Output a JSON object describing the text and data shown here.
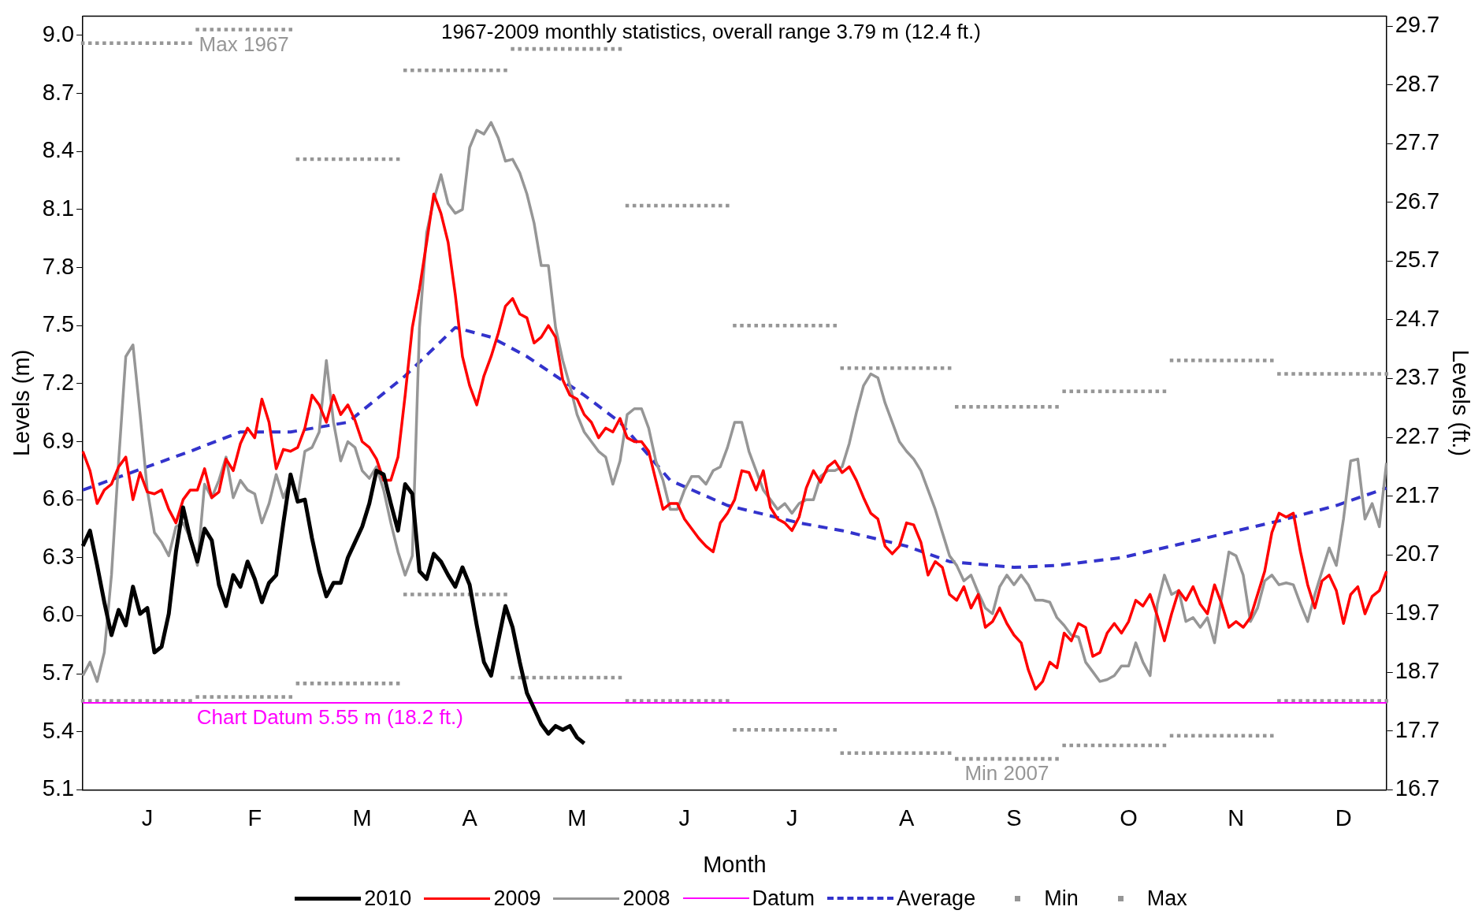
{
  "chart_data": {
    "type": "line",
    "xlabel": "Month",
    "ylabel": "Levels (m)",
    "y2label": "Levels (ft.)",
    "categories": [
      null,
      null,
      null,
      null,
      null,
      null,
      null,
      null,
      null,
      "J",
      null,
      null,
      null,
      null,
      null,
      null,
      null,
      null,
      null,
      null,
      null,
      null,
      null,
      null,
      "F",
      null,
      null,
      null,
      null,
      null,
      null,
      null,
      null,
      null,
      null,
      null,
      null,
      null,
      null,
      "M",
      null,
      null,
      null,
      null,
      null,
      null,
      null,
      null,
      null,
      null,
      null,
      null,
      null,
      null,
      "A",
      null,
      null,
      null,
      null,
      null,
      null,
      null,
      null,
      null,
      null,
      null,
      null,
      null,
      null,
      "M",
      null,
      null,
      null,
      null,
      null,
      null,
      null,
      null,
      null,
      null,
      null,
      null,
      null,
      null,
      "J",
      null,
      null,
      null,
      null,
      null,
      null,
      null,
      null,
      null,
      null,
      null,
      null,
      null,
      null,
      "J",
      null,
      null,
      null,
      null,
      null,
      null,
      null,
      null,
      null,
      null,
      null,
      null,
      null,
      null,
      null,
      "A",
      null,
      null,
      null,
      null,
      null,
      null,
      null,
      null,
      null,
      null,
      null,
      null,
      null,
      null,
      "S",
      null,
      null,
      null,
      null,
      null,
      null,
      null,
      null,
      null,
      null,
      null,
      null,
      null,
      null,
      null,
      "O",
      null,
      null,
      null,
      null,
      null,
      null,
      null,
      null,
      null,
      null,
      null,
      null,
      null,
      null,
      "N",
      null,
      null,
      null,
      null,
      null,
      null,
      null,
      null,
      null,
      null,
      null,
      null,
      null,
      null,
      "D",
      null,
      null,
      null,
      null,
      null,
      null
    ],
    "ylim": [
      5.1,
      9.1
    ],
    "yticks": [
      5.1,
      5.4,
      5.7,
      {
        "value": 6,
        "label": "6.0"
      },
      6.3,
      6.6,
      6.9,
      7.2,
      7.5,
      7.8,
      8.1,
      8.4,
      8.7,
      {
        "value": 9,
        "label": "9.0"
      }
    ],
    "y2lim": [
      16.7,
      29.87
    ],
    "y2ticks": [
      16.7,
      17.7,
      18.7,
      19.7,
      20.7,
      21.7,
      22.7,
      23.7,
      24.7,
      25.7,
      26.7,
      27.7,
      28.7,
      29.7
    ],
    "grid": false,
    "legend": "bottom",
    "annotations": [
      "1967-2009 monthly statistics, overall range 3.79 m (12.4 ft.)",
      {
        "text": "Max 1967",
        "y": 9.03
      },
      {
        "text": "Min 2007",
        "y": 5.26
      },
      {
        "text": "Chart Datum 5.55 m (18.2 ft.)",
        "y": 5.55
      }
    ],
    "series": [
      {
        "name": "2010",
        "color": "#000000",
        "line_style": "solid",
        "values": [
          6.36,
          6.44,
          6.26,
          6.07,
          5.9,
          6.03,
          5.95,
          6.15,
          6.01,
          6.04,
          5.81,
          5.84,
          6.01,
          6.33,
          6.56,
          6.4,
          6.28,
          6.45,
          6.39,
          6.16,
          6.05,
          6.21,
          6.15,
          6.28,
          6.19,
          6.07,
          6.17,
          6.21,
          6.48,
          6.73,
          6.59,
          6.6,
          6.4,
          6.23,
          6.1,
          6.17,
          6.17,
          6.3,
          6.38,
          6.46,
          6.58,
          6.75,
          6.73,
          6.58,
          6.44,
          6.68,
          6.63,
          6.23,
          6.19,
          6.32,
          6.28,
          6.21,
          6.15,
          6.25,
          6.16,
          5.95,
          5.76,
          5.69,
          5.87,
          6.05,
          5.94,
          5.76,
          5.6,
          5.52,
          5.44,
          5.39,
          5.43,
          5.41,
          5.43,
          5.37,
          5.34,
          null,
          null,
          null,
          null,
          null,
          null,
          null,
          null,
          null,
          null,
          null,
          null,
          null,
          null,
          null,
          null,
          null,
          null,
          null,
          null,
          null,
          null,
          null,
          null,
          null,
          null,
          null,
          null,
          null,
          null,
          null,
          null,
          null,
          null,
          null,
          null,
          null,
          null,
          null,
          null,
          null,
          null,
          null,
          null,
          null,
          null,
          null,
          null,
          null,
          null,
          null,
          null,
          null,
          null,
          null,
          null,
          null,
          null,
          null,
          null,
          null,
          null,
          null,
          null,
          null,
          null,
          null,
          null,
          null,
          null,
          null,
          null,
          null,
          null,
          null,
          null,
          null,
          null,
          null,
          null,
          null,
          null,
          null,
          null,
          null,
          null,
          null,
          null,
          null,
          null,
          null,
          null,
          null,
          null,
          null,
          null,
          null,
          null,
          null,
          null,
          null,
          null,
          null,
          null,
          null,
          null,
          null,
          null,
          null,
          null,
          null,
          null
        ]
      },
      {
        "name": "2009",
        "color": "#ff0000",
        "line_style": "solid",
        "values": [
          6.85,
          6.75,
          6.58,
          6.65,
          6.68,
          6.77,
          6.82,
          6.6,
          6.74,
          6.64,
          6.63,
          6.65,
          6.55,
          6.48,
          6.6,
          6.65,
          6.65,
          6.76,
          6.61,
          6.64,
          6.81,
          6.75,
          6.89,
          6.97,
          6.92,
          7.12,
          7.0,
          6.76,
          6.86,
          6.85,
          6.87,
          6.97,
          7.14,
          7.09,
          7.0,
          7.14,
          7.04,
          7.09,
          7.01,
          6.9,
          6.87,
          6.81,
          6.7,
          6.7,
          6.82,
          7.14,
          7.49,
          7.69,
          7.93,
          8.18,
          8.08,
          7.93,
          7.66,
          7.34,
          7.19,
          7.09,
          7.24,
          7.34,
          7.46,
          7.6,
          7.64,
          7.56,
          7.54,
          7.41,
          7.44,
          7.5,
          7.44,
          7.22,
          7.14,
          7.12,
          7.04,
          7.0,
          6.92,
          6.97,
          6.95,
          7.02,
          6.92,
          6.9,
          6.9,
          6.85,
          6.7,
          6.55,
          6.58,
          6.58,
          6.5,
          6.45,
          6.4,
          6.36,
          6.33,
          6.48,
          6.53,
          6.6,
          6.75,
          6.74,
          6.65,
          6.75,
          6.56,
          6.5,
          6.48,
          6.44,
          6.51,
          6.66,
          6.75,
          6.69,
          6.77,
          6.8,
          6.74,
          6.77,
          6.7,
          6.61,
          6.53,
          6.5,
          6.36,
          6.32,
          6.36,
          6.48,
          6.47,
          6.38,
          6.21,
          6.28,
          6.25,
          6.11,
          6.08,
          6.15,
          6.04,
          6.11,
          5.94,
          5.97,
          6.04,
          5.96,
          5.9,
          5.86,
          5.72,
          5.62,
          5.66,
          5.76,
          5.73,
          5.91,
          5.87,
          5.96,
          5.94,
          5.79,
          5.81,
          5.91,
          5.96,
          5.91,
          5.97,
          6.08,
          6.05,
          6.11,
          6.0,
          5.87,
          6.01,
          6.13,
          6.08,
          6.15,
          6.06,
          6.01,
          6.16,
          6.06,
          5.94,
          5.97,
          5.94,
          5.99,
          6.11,
          6.23,
          6.43,
          6.53,
          6.51,
          6.53,
          6.33,
          6.16,
          6.04,
          6.18,
          6.21,
          6.13,
          5.96,
          6.11,
          6.15,
          6.01,
          6.1,
          6.13,
          6.23
        ]
      },
      {
        "name": "2008",
        "color": "#969696",
        "line_style": "solid",
        "values": [
          5.69,
          5.76,
          5.66,
          5.81,
          6.21,
          6.8,
          7.34,
          7.4,
          7.04,
          6.65,
          6.43,
          6.38,
          6.31,
          6.46,
          6.48,
          6.4,
          6.26,
          6.68,
          6.61,
          6.7,
          6.82,
          6.61,
          6.7,
          6.65,
          6.63,
          6.48,
          6.58,
          6.73,
          6.61,
          6.7,
          6.61,
          6.85,
          6.87,
          6.95,
          7.32,
          7.0,
          6.8,
          6.9,
          6.87,
          6.75,
          6.71,
          6.77,
          6.65,
          6.48,
          6.33,
          6.21,
          6.31,
          7.49,
          7.98,
          8.15,
          8.28,
          8.13,
          8.08,
          8.1,
          8.42,
          8.51,
          8.49,
          8.55,
          8.47,
          8.35,
          8.36,
          8.29,
          8.18,
          8.03,
          7.81,
          7.81,
          7.49,
          7.32,
          7.19,
          7.04,
          6.95,
          6.9,
          6.85,
          6.82,
          6.68,
          6.8,
          7.04,
          7.07,
          7.07,
          6.97,
          6.8,
          6.7,
          6.55,
          6.55,
          6.65,
          6.72,
          6.72,
          6.68,
          6.75,
          6.77,
          6.87,
          7.0,
          7.0,
          6.85,
          6.75,
          6.65,
          6.6,
          6.55,
          6.58,
          6.53,
          6.58,
          6.6,
          6.6,
          6.72,
          6.75,
          6.75,
          6.77,
          6.89,
          7.05,
          7.19,
          7.25,
          7.23,
          7.1,
          7.0,
          6.9,
          6.85,
          6.81,
          6.75,
          6.65,
          6.55,
          6.43,
          6.31,
          6.26,
          6.18,
          6.21,
          6.12,
          6.04,
          6.01,
          6.15,
          6.21,
          6.16,
          6.21,
          6.16,
          6.08,
          6.08,
          6.07,
          5.99,
          5.95,
          5.9,
          5.89,
          5.76,
          5.71,
          5.66,
          5.67,
          5.69,
          5.74,
          5.74,
          5.86,
          5.76,
          5.69,
          6.06,
          6.21,
          6.11,
          6.13,
          5.97,
          5.99,
          5.94,
          5.99,
          5.86,
          6.1,
          6.33,
          6.31,
          6.21,
          5.97,
          6.04,
          6.18,
          6.21,
          6.16,
          6.17,
          6.16,
          6.06,
          5.97,
          6.11,
          6.23,
          6.35,
          6.26,
          6.5,
          6.8,
          6.81,
          6.5,
          6.58,
          6.46,
          6.79
        ]
      },
      {
        "name": "Datum",
        "color": "#ff00ff",
        "line_style": "solid",
        "values": [
          5.55,
          5.55,
          5.55,
          5.55,
          5.55,
          5.55,
          5.55,
          5.55,
          5.55,
          5.55,
          5.55,
          5.55,
          5.55,
          5.55,
          5.55,
          5.55,
          5.55,
          5.55,
          5.55,
          5.55,
          5.55,
          5.55,
          5.55,
          5.55,
          5.55,
          5.55,
          5.55,
          5.55,
          5.55,
          5.55,
          5.55,
          5.55,
          5.55,
          5.55,
          5.55,
          5.55,
          5.55,
          5.55,
          5.55,
          5.55,
          5.55,
          5.55,
          5.55,
          5.55,
          5.55,
          5.55,
          5.55,
          5.55,
          5.55,
          5.55,
          5.55,
          5.55,
          5.55,
          5.55,
          5.55,
          5.55,
          5.55,
          5.55,
          5.55,
          5.55,
          5.55,
          5.55,
          5.55,
          5.55,
          5.55,
          5.55,
          5.55,
          5.55,
          5.55,
          5.55,
          5.55,
          5.55,
          5.55,
          5.55,
          5.55,
          5.55,
          5.55,
          5.55,
          5.55,
          5.55,
          5.55,
          5.55,
          5.55,
          5.55,
          5.55,
          5.55,
          5.55,
          5.55,
          5.55,
          5.55,
          5.55,
          5.55,
          5.55,
          5.55,
          5.55,
          5.55,
          5.55,
          5.55,
          5.55,
          5.55,
          5.55,
          5.55,
          5.55,
          5.55,
          5.55,
          5.55,
          5.55,
          5.55,
          5.55,
          5.55,
          5.55,
          5.55,
          5.55,
          5.55,
          5.55,
          5.55,
          5.55,
          5.55,
          5.55,
          5.55,
          5.55,
          5.55,
          5.55,
          5.55,
          5.55,
          5.55,
          5.55,
          5.55,
          5.55,
          5.55,
          5.55,
          5.55,
          5.55,
          5.55,
          5.55,
          5.55,
          5.55,
          5.55,
          5.55,
          5.55,
          5.55,
          5.55,
          5.55,
          5.55,
          5.55,
          5.55,
          5.55,
          5.55,
          5.55,
          5.55,
          5.55,
          5.55,
          5.55,
          5.55,
          5.55,
          5.55,
          5.55,
          5.55,
          5.55,
          5.55,
          5.55,
          5.55,
          5.55,
          5.55,
          5.55,
          5.55,
          5.55,
          5.55,
          5.55,
          5.55,
          5.55,
          5.55,
          5.55,
          5.55,
          5.55,
          5.55,
          5.55,
          5.55,
          5.55,
          5.55,
          5.55,
          5.55,
          5.55
        ]
      },
      {
        "name": "Average",
        "color": "#3333cc",
        "line_style": "dashed",
        "values": [
          6.65,
          null,
          null,
          null,
          null,
          null,
          null,
          null,
          null,
          null,
          null,
          null,
          null,
          null,
          null,
          6.85,
          null,
          null,
          null,
          null,
          null,
          null,
          6.95,
          null,
          null,
          null,
          null,
          null,
          null,
          6.95,
          null,
          null,
          null,
          null,
          null,
          null,
          null,
          7.0,
          null,
          null,
          null,
          null,
          null,
          null,
          null,
          7.24,
          null,
          null,
          null,
          null,
          null,
          null,
          7.49,
          null,
          null,
          null,
          null,
          7.44,
          null,
          null,
          null,
          null,
          7.34,
          null,
          null,
          null,
          null,
          null,
          null,
          null,
          7.14,
          null,
          null,
          null,
          null,
          7.0,
          null,
          null,
          null,
          null,
          null,
          null,
          6.7,
          null,
          null,
          null,
          null,
          null,
          null,
          null,
          6.57,
          null,
          null,
          null,
          null,
          null,
          null,
          null,
          null,
          null,
          6.48,
          null,
          null,
          null,
          null,
          null,
          6.44,
          null,
          null,
          null,
          null,
          null,
          null,
          null,
          null,
          6.36,
          null,
          null,
          null,
          null,
          null,
          6.28,
          null,
          null,
          null,
          null,
          null,
          null,
          null,
          null,
          6.25,
          null,
          null,
          null,
          null,
          null,
          6.26,
          null,
          null,
          null,
          null,
          null,
          null,
          null,
          null,
          6.3,
          null,
          null,
          null,
          null,
          null,
          null,
          6.36,
          null,
          null,
          null,
          null,
          null,
          null,
          null,
          6.43,
          null,
          null,
          null,
          null,
          null,
          null,
          6.49,
          null,
          null,
          null,
          null,
          null,
          null,
          null,
          6.57,
          null,
          null,
          null,
          null,
          null,
          null,
          6.66
        ]
      },
      {
        "name": "Min",
        "type": "scatter",
        "marker": "square",
        "color": "#969696",
        "values": [
          5.56,
          5.56,
          5.56,
          5.56,
          5.56,
          5.56,
          5.56,
          5.56,
          5.56,
          5.56,
          5.56,
          5.56,
          5.56,
          5.56,
          5.56,
          5.56,
          5.58,
          5.58,
          5.58,
          5.58,
          5.58,
          5.58,
          5.58,
          5.58,
          5.58,
          5.58,
          5.58,
          5.58,
          5.58,
          5.58,
          5.65,
          5.65,
          5.65,
          5.65,
          5.65,
          5.65,
          5.65,
          5.65,
          5.65,
          5.65,
          5.65,
          5.65,
          5.65,
          5.65,
          5.65,
          6.11,
          6.11,
          6.11,
          6.11,
          6.11,
          6.11,
          6.11,
          6.11,
          6.11,
          6.11,
          6.11,
          6.11,
          6.11,
          6.11,
          6.11,
          5.68,
          5.68,
          5.68,
          5.68,
          5.68,
          5.68,
          5.68,
          5.68,
          5.68,
          5.68,
          5.68,
          5.68,
          5.68,
          5.68,
          5.68,
          5.68,
          5.56,
          5.56,
          5.56,
          5.56,
          5.56,
          5.56,
          5.56,
          5.56,
          5.56,
          5.56,
          5.56,
          5.56,
          5.56,
          5.56,
          5.56,
          5.41,
          5.41,
          5.41,
          5.41,
          5.41,
          5.41,
          5.41,
          5.41,
          5.41,
          5.41,
          5.41,
          5.41,
          5.41,
          5.41,
          5.41,
          5.29,
          5.29,
          5.29,
          5.29,
          5.29,
          5.29,
          5.29,
          5.29,
          5.29,
          5.29,
          5.29,
          5.29,
          5.29,
          5.29,
          5.29,
          5.29,
          5.26,
          5.26,
          5.26,
          5.26,
          5.26,
          5.26,
          5.26,
          5.26,
          5.26,
          5.26,
          5.26,
          5.26,
          5.26,
          5.26,
          5.26,
          5.33,
          5.33,
          5.33,
          5.33,
          5.33,
          5.33,
          5.33,
          5.33,
          5.33,
          5.33,
          5.33,
          5.33,
          5.33,
          5.33,
          5.33,
          5.38,
          5.38,
          5.38,
          5.38,
          5.38,
          5.38,
          5.38,
          5.38,
          5.38,
          5.38,
          5.38,
          5.38,
          5.38,
          5.38,
          5.38,
          5.56,
          5.56,
          5.56,
          5.56,
          5.56,
          5.56,
          5.56,
          5.56,
          5.56,
          5.56,
          5.56,
          5.56,
          5.56,
          5.56,
          5.56,
          5.56
        ]
      },
      {
        "name": "Max",
        "type": "scatter",
        "marker": "square",
        "color": "#969696",
        "values": [
          8.96,
          8.96,
          8.96,
          8.96,
          8.96,
          8.96,
          8.96,
          8.96,
          8.96,
          8.96,
          8.96,
          8.96,
          8.96,
          8.96,
          8.96,
          8.96,
          9.03,
          9.03,
          9.03,
          9.03,
          9.03,
          9.03,
          9.03,
          9.03,
          9.03,
          9.03,
          9.03,
          9.03,
          9.03,
          9.03,
          8.36,
          8.36,
          8.36,
          8.36,
          8.36,
          8.36,
          8.36,
          8.36,
          8.36,
          8.36,
          8.36,
          8.36,
          8.36,
          8.36,
          8.36,
          8.82,
          8.82,
          8.82,
          8.82,
          8.82,
          8.82,
          8.82,
          8.82,
          8.82,
          8.82,
          8.82,
          8.82,
          8.82,
          8.82,
          8.82,
          8.93,
          8.93,
          8.93,
          8.93,
          8.93,
          8.93,
          8.93,
          8.93,
          8.93,
          8.93,
          8.93,
          8.93,
          8.93,
          8.93,
          8.93,
          8.93,
          8.12,
          8.12,
          8.12,
          8.12,
          8.12,
          8.12,
          8.12,
          8.12,
          8.12,
          8.12,
          8.12,
          8.12,
          8.12,
          8.12,
          8.12,
          7.5,
          7.5,
          7.5,
          7.5,
          7.5,
          7.5,
          7.5,
          7.5,
          7.5,
          7.5,
          7.5,
          7.5,
          7.5,
          7.5,
          7.5,
          7.28,
          7.28,
          7.28,
          7.28,
          7.28,
          7.28,
          7.28,
          7.28,
          7.28,
          7.28,
          7.28,
          7.28,
          7.28,
          7.28,
          7.28,
          7.28,
          7.08,
          7.08,
          7.08,
          7.08,
          7.08,
          7.08,
          7.08,
          7.08,
          7.08,
          7.08,
          7.08,
          7.08,
          7.08,
          7.08,
          7.08,
          7.16,
          7.16,
          7.16,
          7.16,
          7.16,
          7.16,
          7.16,
          7.16,
          7.16,
          7.16,
          7.16,
          7.16,
          7.16,
          7.16,
          7.16,
          7.32,
          7.32,
          7.32,
          7.32,
          7.32,
          7.32,
          7.32,
          7.32,
          7.32,
          7.32,
          7.32,
          7.32,
          7.32,
          7.32,
          7.32,
          7.25,
          7.25,
          7.25,
          7.25,
          7.25,
          7.25,
          7.25,
          7.25,
          7.25,
          7.25,
          7.25,
          7.25,
          7.25,
          7.25,
          7.25,
          7.25
        ]
      }
    ]
  }
}
